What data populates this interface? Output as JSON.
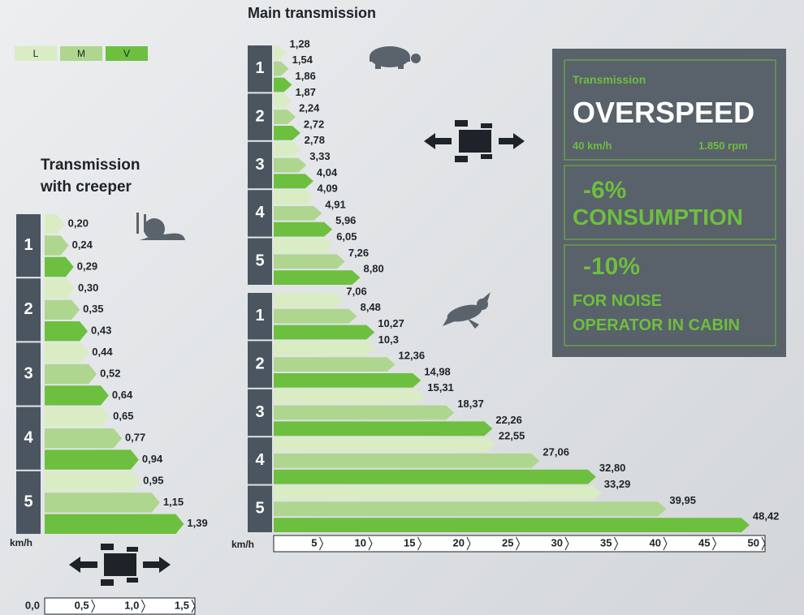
{
  "legend": [
    {
      "name": "L",
      "color": "#d9ecc3"
    },
    {
      "name": "M",
      "color": "#aed68f"
    },
    {
      "name": "V",
      "color": "#6dbf3f"
    }
  ],
  "chart_data": [
    {
      "type": "bar",
      "title": "Transmission with creeper",
      "xlabel": "km/h",
      "xlim": [
        0,
        1.5
      ],
      "xticks": [
        {
          "value": 0,
          "label": "0,0"
        },
        {
          "value": 0.5,
          "label": "0,5"
        },
        {
          "value": 1,
          "label": "1,0"
        },
        {
          "value": 1.5,
          "label": "1,5"
        }
      ],
      "groups": [
        {
          "categories": [
            "1",
            "2",
            "3",
            "4",
            "5"
          ],
          "series": [
            {
              "values": [
                0.2,
                0.3,
                0.44,
                0.65,
                0.95
              ],
              "value_labels": [
                "0,20",
                "0,30",
                "0,44",
                "0,65",
                "0,95"
              ]
            },
            {
              "values": [
                0.24,
                0.35,
                0.52,
                0.77,
                1.15
              ],
              "value_labels": [
                "0,24",
                "0,35",
                "0,52",
                "0,77",
                "1,15"
              ]
            },
            {
              "values": [
                0.29,
                0.43,
                0.64,
                0.94,
                1.39
              ],
              "value_labels": [
                "0,29",
                "0,43",
                "0,64",
                "0,94",
                "1,39"
              ]
            }
          ]
        }
      ]
    },
    {
      "type": "bar",
      "title": "Main transmission",
      "xlabel": "km/h",
      "xlim": [
        0,
        50
      ],
      "xticks": [
        5,
        10,
        15,
        20,
        25,
        30,
        35,
        40,
        45,
        50
      ],
      "groups": [
        {
          "categories": [
            "1",
            "2",
            "3",
            "4",
            "5"
          ],
          "series": [
            {
              "values": [
                1.28,
                1.87,
                2.78,
                4.09,
                6.05
              ],
              "value_labels": [
                "1,28",
                "1,87",
                "2,78",
                "4,09",
                "6,05"
              ]
            },
            {
              "values": [
                1.54,
                2.24,
                3.33,
                4.91,
                7.26
              ],
              "value_labels": [
                "1,54",
                "2,24",
                "3,33",
                "4,91",
                "7,26"
              ]
            },
            {
              "values": [
                1.86,
                2.72,
                4.04,
                5.96,
                8.8
              ],
              "value_labels": [
                "1,86",
                "2,72",
                "4,04",
                "5,96",
                "8,80"
              ]
            }
          ]
        },
        {
          "categories": [
            "1",
            "2",
            "3",
            "4",
            "5"
          ],
          "series": [
            {
              "values": [
                7.06,
                10.3,
                15.31,
                22.55,
                33.29
              ],
              "value_labels": [
                "7,06",
                "10,3",
                "15,31",
                "22,55",
                "33,29"
              ]
            },
            {
              "values": [
                8.48,
                12.36,
                18.37,
                27.06,
                39.95
              ],
              "value_labels": [
                "8,48",
                "12,36",
                "18,37",
                "27,06",
                "39,95"
              ]
            },
            {
              "values": [
                10.27,
                14.98,
                22.26,
                32.8,
                48.42
              ],
              "value_labels": [
                "10,27",
                "14,98",
                "22,26",
                "32,80",
                "48,42"
              ]
            }
          ]
        }
      ]
    }
  ],
  "panel": {
    "label": "Transmission",
    "headline": "OVERSPEED",
    "speed": "40 km/h",
    "rpm": "1.850 rpm",
    "consumption_value": "-6%",
    "consumption_text": "CONSUMPTION",
    "noise_value": "-10%",
    "noise_line1": "FOR NOISE",
    "noise_line2": "OPERATOR IN CABIN"
  }
}
